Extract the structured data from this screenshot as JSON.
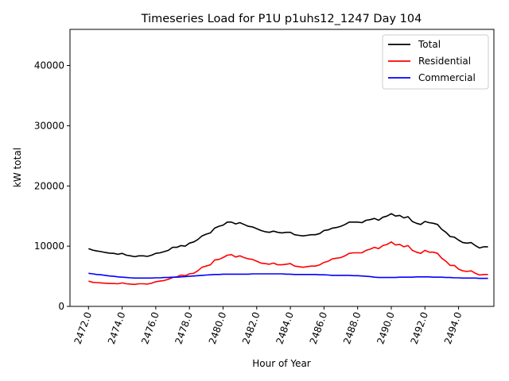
{
  "chart_data": {
    "type": "line",
    "title": "Timeseries Load for P1U p1uhs12_1247  Day 104",
    "xlabel": "Hour of Year",
    "ylabel": "kW total",
    "xlim": [
      2470.9,
      2496.1
    ],
    "ylim": [
      0,
      46000
    ],
    "xticks": [
      2472,
      2474,
      2476,
      2478,
      2480,
      2482,
      2484,
      2486,
      2488,
      2490,
      2492,
      2494
    ],
    "xtick_labels": [
      "2472.0",
      "2474.0",
      "2476.0",
      "2478.0",
      "2480.0",
      "2482.0",
      "2484.0",
      "2486.0",
      "2488.0",
      "2490.0",
      "2492.0",
      "2494.0"
    ],
    "yticks": [
      0,
      10000,
      20000,
      30000,
      40000
    ],
    "ytick_labels": [
      "0",
      "10000",
      "20000",
      "30000",
      "40000"
    ],
    "legend_position": "top-right",
    "x": [
      2472.0,
      2472.25,
      2472.5,
      2472.75,
      2473.0,
      2473.25,
      2473.5,
      2473.75,
      2474.0,
      2474.25,
      2474.5,
      2474.75,
      2475.0,
      2475.25,
      2475.5,
      2475.75,
      2476.0,
      2476.25,
      2476.5,
      2476.75,
      2477.0,
      2477.25,
      2477.5,
      2477.75,
      2478.0,
      2478.25,
      2478.5,
      2478.75,
      2479.0,
      2479.25,
      2479.5,
      2479.75,
      2480.0,
      2480.25,
      2480.5,
      2480.75,
      2481.0,
      2481.25,
      2481.5,
      2481.75,
      2482.0,
      2482.25,
      2482.5,
      2482.75,
      2483.0,
      2483.25,
      2483.5,
      2483.75,
      2484.0,
      2484.25,
      2484.5,
      2484.75,
      2485.0,
      2485.25,
      2485.5,
      2485.75,
      2486.0,
      2486.25,
      2486.5,
      2486.75,
      2487.0,
      2487.25,
      2487.5,
      2487.75,
      2488.0,
      2488.25,
      2488.5,
      2488.75,
      2489.0,
      2489.25,
      2489.5,
      2489.75,
      2490.0,
      2490.25,
      2490.5,
      2490.75,
      2491.0,
      2491.25,
      2491.5,
      2491.75,
      2492.0,
      2492.25,
      2492.5,
      2492.75,
      2493.0,
      2493.25,
      2493.5,
      2493.75,
      2494.0,
      2494.25,
      2494.5,
      2494.75,
      2495.0,
      2495.25,
      2495.5,
      2495.75
    ],
    "series": [
      {
        "name": "Total",
        "color": "#000000",
        "values": [
          9600,
          9350,
          9200,
          9100,
          8950,
          8850,
          8800,
          8650,
          8800,
          8500,
          8400,
          8250,
          8400,
          8400,
          8300,
          8500,
          8800,
          8900,
          9100,
          9300,
          9800,
          9800,
          10100,
          10000,
          10500,
          10700,
          11100,
          11700,
          12000,
          12200,
          13000,
          13300,
          13500,
          14000,
          14000,
          13700,
          13900,
          13600,
          13300,
          13200,
          12900,
          12600,
          12400,
          12300,
          12500,
          12300,
          12200,
          12300,
          12300,
          11900,
          11800,
          11700,
          11800,
          11900,
          11900,
          12100,
          12600,
          12700,
          13000,
          13100,
          13300,
          13600,
          14000,
          14000,
          14000,
          13900,
          14300,
          14400,
          14600,
          14300,
          14800,
          15000,
          15400,
          15000,
          15100,
          14700,
          14900,
          14100,
          13800,
          13600,
          14100,
          13900,
          13800,
          13600,
          12800,
          12300,
          11600,
          11500,
          11000,
          10600,
          10500,
          10600,
          10100,
          9700,
          9900,
          9900
        ]
      },
      {
        "name": "Residential",
        "color": "#ff0000",
        "values": [
          4200,
          4000,
          3950,
          3900,
          3850,
          3800,
          3800,
          3750,
          3900,
          3750,
          3700,
          3650,
          3750,
          3750,
          3700,
          3850,
          4100,
          4200,
          4300,
          4500,
          4800,
          4900,
          5200,
          5100,
          5400,
          5500,
          5900,
          6500,
          6700,
          6900,
          7700,
          7800,
          8100,
          8500,
          8600,
          8200,
          8400,
          8100,
          7900,
          7800,
          7500,
          7200,
          7100,
          7000,
          7200,
          6900,
          6900,
          7000,
          7100,
          6700,
          6600,
          6500,
          6600,
          6700,
          6700,
          6900,
          7300,
          7500,
          7900,
          8000,
          8100,
          8400,
          8800,
          8900,
          8900,
          8900,
          9300,
          9500,
          9800,
          9600,
          10100,
          10300,
          10700,
          10200,
          10300,
          9900,
          10100,
          9300,
          9000,
          8800,
          9300,
          9000,
          9000,
          8800,
          8000,
          7500,
          6800,
          6800,
          6200,
          5900,
          5800,
          5900,
          5500,
          5200,
          5300,
          5300
        ]
      },
      {
        "name": "Commercial",
        "color": "#0000ff",
        "values": [
          5500,
          5400,
          5300,
          5250,
          5150,
          5050,
          5000,
          4900,
          4850,
          4800,
          4750,
          4700,
          4700,
          4700,
          4700,
          4700,
          4750,
          4750,
          4800,
          4800,
          4850,
          4850,
          4900,
          4950,
          5000,
          5050,
          5100,
          5150,
          5200,
          5250,
          5300,
          5300,
          5350,
          5350,
          5350,
          5350,
          5350,
          5350,
          5350,
          5400,
          5400,
          5400,
          5400,
          5400,
          5400,
          5400,
          5400,
          5350,
          5350,
          5300,
          5300,
          5300,
          5300,
          5300,
          5300,
          5250,
          5250,
          5200,
          5150,
          5150,
          5150,
          5150,
          5150,
          5100,
          5100,
          5050,
          5000,
          4950,
          4850,
          4800,
          4800,
          4800,
          4800,
          4800,
          4850,
          4850,
          4850,
          4850,
          4900,
          4900,
          4900,
          4900,
          4850,
          4850,
          4850,
          4800,
          4800,
          4750,
          4750,
          4700,
          4700,
          4700,
          4700,
          4650,
          4650,
          4650
        ]
      }
    ]
  }
}
